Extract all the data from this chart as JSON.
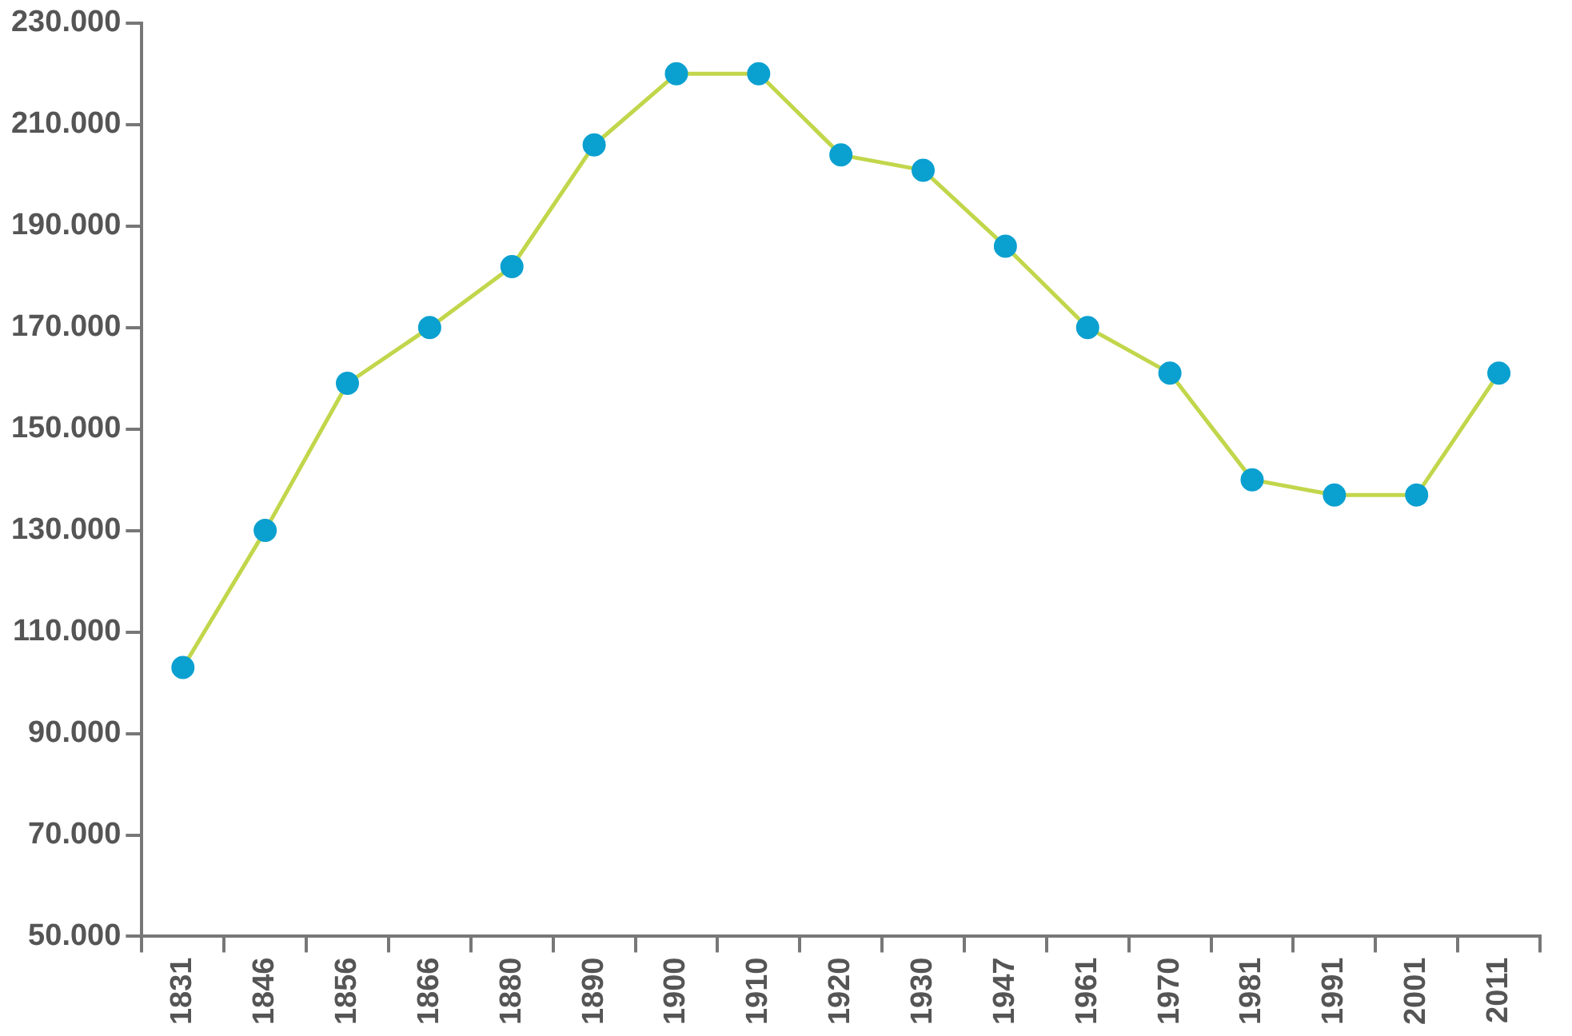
{
  "chart_data": {
    "type": "line",
    "categories": [
      "1831",
      "1846",
      "1856",
      "1866",
      "1880",
      "1890",
      "1900",
      "1910",
      "1920",
      "1930",
      "1947",
      "1961",
      "1970",
      "1981",
      "1991",
      "2001",
      "2011"
    ],
    "series": [
      {
        "color": "#c2d64b",
        "colors": [
          "#0aa0d0",
          "#0aa0d0",
          "#0aa0d0",
          "#0aa0d0",
          "#0aa0d0",
          "#0aa0d0",
          "#0aa0d0",
          "#0aa0d0",
          "#0aa0d0",
          "#0aa0d0",
          "#0aa0d0",
          "#0aa0d0",
          "#0aa0d0",
          "#0aa0d0",
          "#0aa0d0",
          "#0aa0d0",
          "#0aa0d0"
        ],
        "values": [
          103000,
          130000,
          159000,
          170000,
          182000,
          206000,
          220000,
          220000,
          204000,
          201000,
          186000,
          170000,
          161000,
          140000,
          137000,
          137000,
          161000
        ]
      }
    ],
    "ylim": [
      50000,
      230000
    ],
    "yticks": [
      {
        "value": 50000,
        "label": "50.000"
      },
      {
        "value": 70000,
        "label": "70.000"
      },
      {
        "value": 90000,
        "label": "90.000"
      },
      {
        "value": 110000,
        "label": "110.000"
      },
      {
        "value": 130000,
        "label": "130.000"
      },
      {
        "value": 150000,
        "label": "150.000"
      },
      {
        "value": 170000,
        "label": "170.000"
      },
      {
        "value": 190000,
        "label": "190.000"
      },
      {
        "value": 210000,
        "label": "210.000"
      },
      {
        "value": 230000,
        "label": "230.000"
      }
    ],
    "grid": false,
    "legend": false,
    "marker": "circle",
    "line_style": "solid"
  }
}
